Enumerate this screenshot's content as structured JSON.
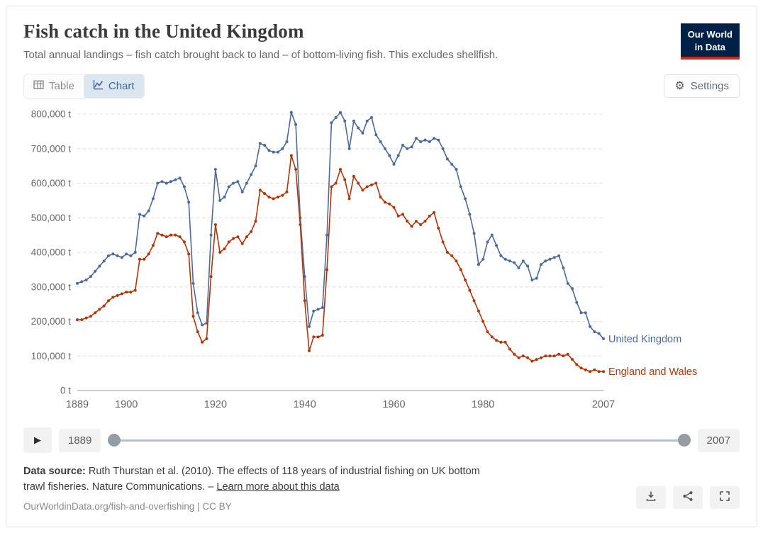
{
  "header": {
    "title": "Fish catch in the United Kingdom",
    "subtitle": "Total annual landings – fish catch brought back to land – of bottom-living fish. This excludes shellfish.",
    "logo": {
      "line1": "Our World",
      "line2": "in Data",
      "navy": "#002147",
      "red": "#CE2A1C"
    }
  },
  "toolbar": {
    "table_label": "Table",
    "chart_label": "Chart",
    "settings_label": "Settings"
  },
  "timeline": {
    "start_label": "1889",
    "end_label": "2007"
  },
  "footer": {
    "datasource_prefix": "Data source:",
    "datasource_text": " Ruth Thurstan et al. (2010). The effects of 118 years of industrial fishing on UK bottom trawl fisheries. Nature Communications. – ",
    "learn_more": "Learn more about this data",
    "citation": "OurWorldinData.org/fish-and-overfishing | CC BY"
  },
  "chart_data": {
    "type": "line",
    "title": "Fish catch in the United Kingdom",
    "unit": "tonnes",
    "x_start": 1889,
    "x_end": 2007,
    "ylim": [
      0,
      800000
    ],
    "grid": "dashed-horizontal",
    "legend_position": "right-end-labels",
    "x_ticks": [
      {
        "value": 1889,
        "label": "1889"
      },
      {
        "value": 1900,
        "label": "1900"
      },
      {
        "value": 1920,
        "label": "1920"
      },
      {
        "value": 1940,
        "label": "1940"
      },
      {
        "value": 1960,
        "label": "1960"
      },
      {
        "value": 1980,
        "label": "1980"
      },
      {
        "value": 2007,
        "label": "2007"
      }
    ],
    "y_ticks": [
      {
        "value": 0,
        "label": "0 t"
      },
      {
        "value": 100000,
        "label": "100,000 t"
      },
      {
        "value": 200000,
        "label": "200,000 t"
      },
      {
        "value": 300000,
        "label": "300,000 t"
      },
      {
        "value": 400000,
        "label": "400,000 t"
      },
      {
        "value": 500000,
        "label": "500,000 t"
      },
      {
        "value": 600000,
        "label": "600,000 t"
      },
      {
        "value": 700000,
        "label": "700,000 t"
      },
      {
        "value": 800000,
        "label": "800,000 t"
      }
    ],
    "series": [
      {
        "name": "United Kingdom",
        "color": "#4C6A9C",
        "values": [
          310000,
          315000,
          320000,
          330000,
          345000,
          360000,
          375000,
          390000,
          395000,
          390000,
          385000,
          395000,
          390000,
          400000,
          510000,
          505000,
          520000,
          555000,
          600000,
          605000,
          600000,
          605000,
          610000,
          615000,
          590000,
          545000,
          310000,
          225000,
          190000,
          195000,
          450000,
          640000,
          550000,
          560000,
          590000,
          600000,
          605000,
          575000,
          600000,
          625000,
          650000,
          715000,
          710000,
          695000,
          690000,
          690000,
          700000,
          720000,
          805000,
          770000,
          500000,
          330000,
          185000,
          230000,
          235000,
          240000,
          450000,
          775000,
          790000,
          805000,
          780000,
          700000,
          780000,
          760000,
          745000,
          780000,
          790000,
          740000,
          720000,
          700000,
          680000,
          655000,
          680000,
          710000,
          700000,
          705000,
          730000,
          720000,
          725000,
          720000,
          730000,
          725000,
          700000,
          670000,
          655000,
          640000,
          590000,
          555000,
          510000,
          455000,
          365000,
          380000,
          430000,
          450000,
          420000,
          390000,
          380000,
          375000,
          370000,
          355000,
          375000,
          360000,
          320000,
          325000,
          365000,
          375000,
          380000,
          385000,
          390000,
          355000,
          310000,
          295000,
          255000,
          225000,
          225000,
          185000,
          170000,
          165000,
          150000
        ]
      },
      {
        "name": "England and Wales",
        "color": "#B13507",
        "values": [
          205000,
          205000,
          210000,
          215000,
          225000,
          235000,
          245000,
          260000,
          270000,
          275000,
          280000,
          285000,
          285000,
          290000,
          380000,
          380000,
          395000,
          420000,
          455000,
          450000,
          445000,
          450000,
          450000,
          445000,
          430000,
          395000,
          215000,
          170000,
          140000,
          150000,
          330000,
          480000,
          400000,
          410000,
          430000,
          440000,
          445000,
          425000,
          445000,
          460000,
          490000,
          580000,
          570000,
          560000,
          555000,
          560000,
          565000,
          575000,
          680000,
          640000,
          480000,
          260000,
          115000,
          155000,
          155000,
          160000,
          350000,
          590000,
          600000,
          640000,
          610000,
          555000,
          620000,
          600000,
          580000,
          590000,
          595000,
          600000,
          560000,
          545000,
          540000,
          530000,
          505000,
          510000,
          490000,
          475000,
          490000,
          480000,
          490000,
          505000,
          515000,
          470000,
          430000,
          400000,
          390000,
          375000,
          350000,
          320000,
          290000,
          260000,
          230000,
          200000,
          170000,
          155000,
          145000,
          140000,
          140000,
          120000,
          105000,
          95000,
          100000,
          95000,
          85000,
          90000,
          95000,
          100000,
          100000,
          100000,
          105000,
          100000,
          105000,
          90000,
          75000,
          65000,
          60000,
          55000,
          60000,
          55000,
          55000
        ]
      }
    ]
  }
}
